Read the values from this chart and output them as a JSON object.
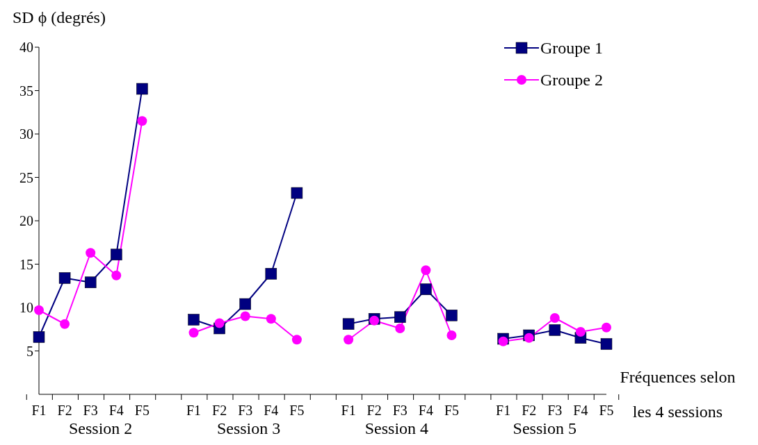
{
  "chart_data": {
    "type": "line",
    "ylabel": "SD ϕ (degrés)",
    "xlabel": "Fréquences selon les 4 sessions",
    "categories": [
      "F1",
      "F2",
      "F3",
      "F4",
      "F5",
      null,
      "F1",
      "F2",
      "F3",
      "F4",
      "F5",
      null,
      "F1",
      "F2",
      "F3",
      "F4",
      "F5",
      null,
      "F1",
      "F2",
      "F3",
      "F4",
      "F5"
    ],
    "annotations": [
      "Session 2",
      "Session 3",
      "Session 4",
      "Session 5"
    ],
    "series": [
      {
        "name": "Groupe 1",
        "color": "#000080",
        "marker": "square",
        "values": [
          6.6,
          13.4,
          12.9,
          16.1,
          35.2,
          null,
          8.6,
          7.6,
          10.4,
          13.9,
          23.2,
          null,
          8.1,
          8.7,
          8.9,
          12.1,
          9.1,
          null,
          6.4,
          6.8,
          7.4,
          6.5,
          5.8
        ]
      },
      {
        "name": "Groupe 2",
        "color": "#ff00ff",
        "marker": "circle",
        "values": [
          9.7,
          8.1,
          16.3,
          13.7,
          31.5,
          null,
          7.1,
          8.2,
          9.0,
          8.7,
          6.3,
          null,
          6.3,
          8.5,
          7.6,
          14.3,
          6.8,
          null,
          6.1,
          6.5,
          8.8,
          7.2,
          7.7
        ]
      }
    ],
    "ylim": [
      0,
      40
    ],
    "yticks": [
      5,
      10,
      15,
      20,
      25,
      30,
      35,
      40
    ],
    "grid": false,
    "legend": "top right",
    "line_style": "solid"
  }
}
